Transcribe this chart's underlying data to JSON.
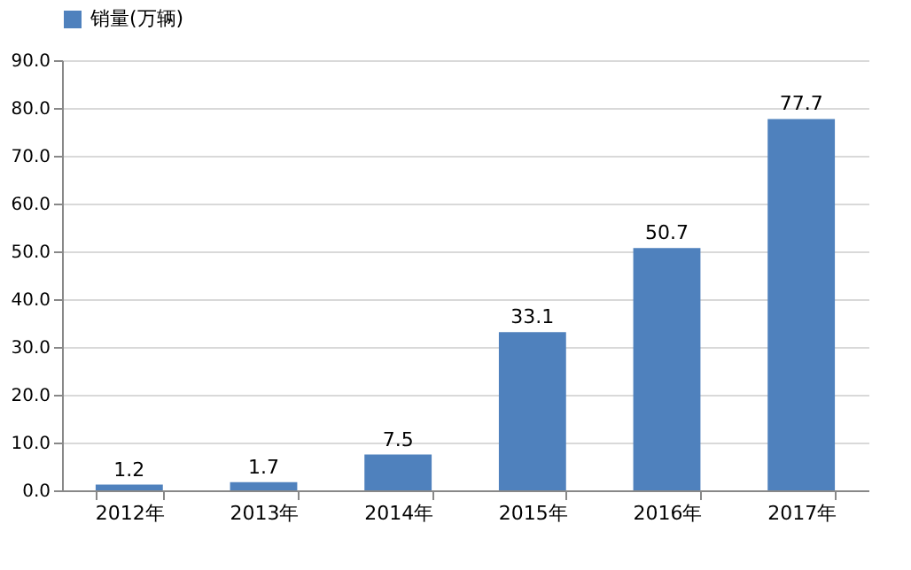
{
  "chart_data": {
    "type": "bar",
    "categories": [
      "2012年",
      "2013年",
      "2014年",
      "2015年",
      "2016年",
      "2017年"
    ],
    "series": [
      {
        "name": "销量(万辆)",
        "color": "#4f81bd",
        "values": [
          1.2,
          1.7,
          7.5,
          33.1,
          50.7,
          77.7
        ]
      }
    ],
    "ylim": [
      0,
      90
    ],
    "yticks": [
      {
        "value": 0,
        "label": "0.0"
      },
      {
        "value": 10,
        "label": "10.0"
      },
      {
        "value": 20,
        "label": "20.0"
      },
      {
        "value": 30,
        "label": "30.0"
      },
      {
        "value": 40,
        "label": "40.0"
      },
      {
        "value": 50,
        "label": "50.0"
      },
      {
        "value": 60,
        "label": "60.0"
      },
      {
        "value": 70,
        "label": "70.0"
      },
      {
        "value": 80,
        "label": "80.0"
      },
      {
        "value": 90,
        "label": "90.0"
      }
    ],
    "grid": "y",
    "legend": "top",
    "data_labels": true
  }
}
